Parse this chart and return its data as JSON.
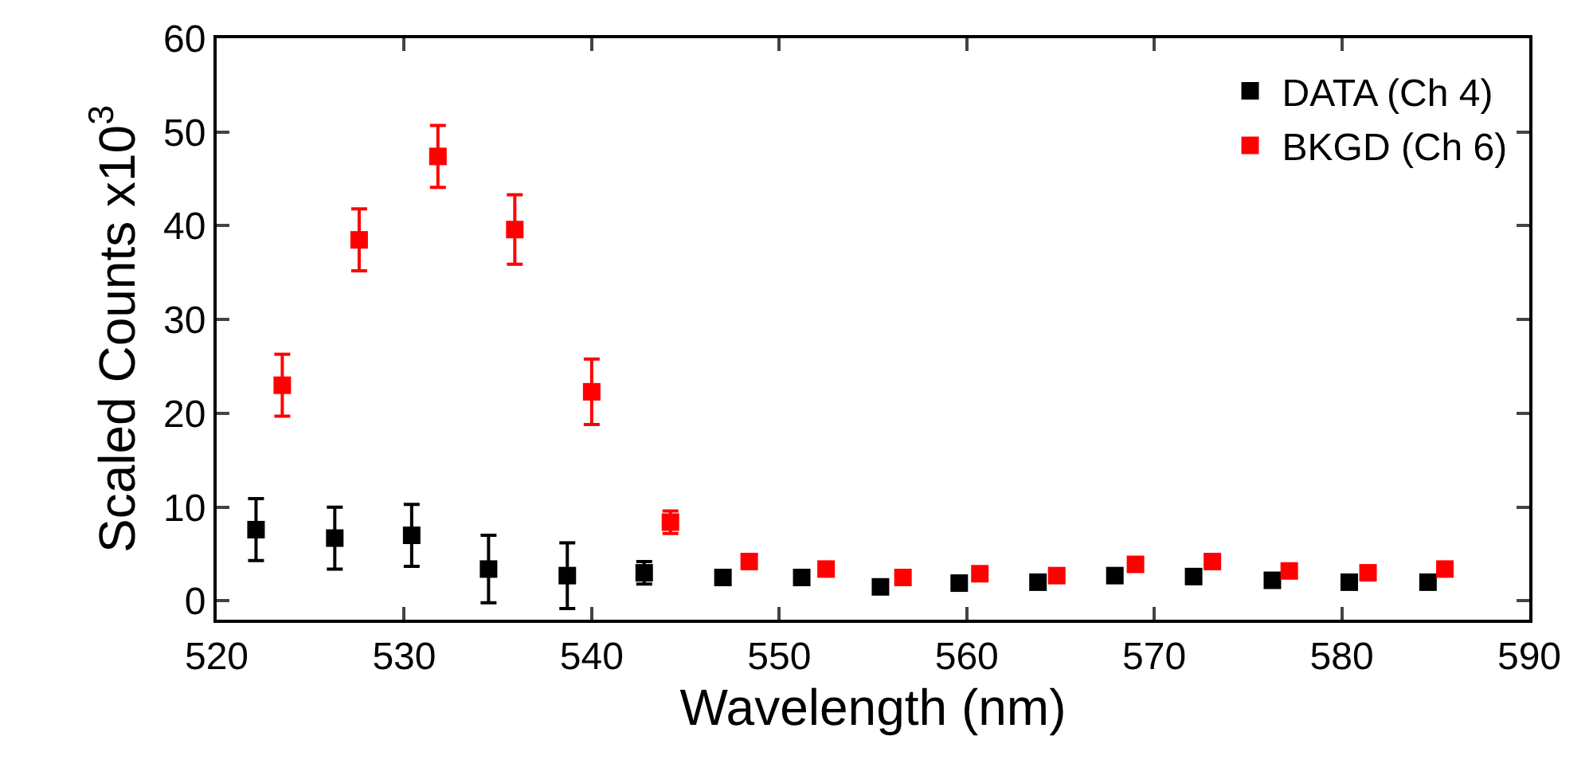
{
  "chart_data": {
    "type": "scatter",
    "xlabel": "Wavelength (nm)",
    "ylabel": "Scaled Counts x10$^{3}$",
    "xlim": [
      520,
      590
    ],
    "xticks": [
      520,
      530,
      540,
      550,
      560,
      570,
      580,
      590
    ],
    "ylim": [
      -2,
      60
    ],
    "yticks": [
      0,
      10,
      20,
      30,
      40,
      50,
      60
    ],
    "marker": "square",
    "legend": "top right",
    "series": [
      {
        "name": "DATA (Ch 4)",
        "color": "#000000",
        "x": [
          522.1,
          526.3,
          530.4,
          534.5,
          538.7,
          542.8,
          547.0,
          551.2,
          555.4,
          559.6,
          563.8,
          567.9,
          572.1,
          576.3,
          580.4,
          584.6
        ],
        "values": [
          7.6,
          6.7,
          7.0,
          3.4,
          2.7,
          3.0,
          2.5,
          2.5,
          1.5,
          1.9,
          2.0,
          2.7,
          2.6,
          2.2,
          2.0,
          2.0
        ],
        "errors": [
          3.3,
          3.3,
          3.3,
          3.6,
          3.5,
          1.2,
          null,
          null,
          null,
          null,
          null,
          null,
          null,
          null,
          null,
          null
        ]
      },
      {
        "name": "BKGD (Ch 6)",
        "color": "#ff0000",
        "x": [
          523.5,
          527.6,
          531.8,
          535.9,
          540.0,
          544.2,
          548.4,
          552.5,
          556.6,
          560.7,
          564.8,
          569.0,
          573.1,
          577.2,
          581.4,
          585.5
        ],
        "values": [
          23.0,
          38.5,
          47.4,
          39.6,
          22.3,
          8.4,
          4.2,
          3.4,
          2.5,
          2.9,
          2.7,
          3.9,
          4.2,
          3.2,
          3.0,
          3.4
        ],
        "errors": [
          3.3,
          3.3,
          3.3,
          3.7,
          3.5,
          1.2,
          null,
          null,
          null,
          null,
          null,
          null,
          null,
          null,
          null,
          null
        ]
      }
    ]
  }
}
